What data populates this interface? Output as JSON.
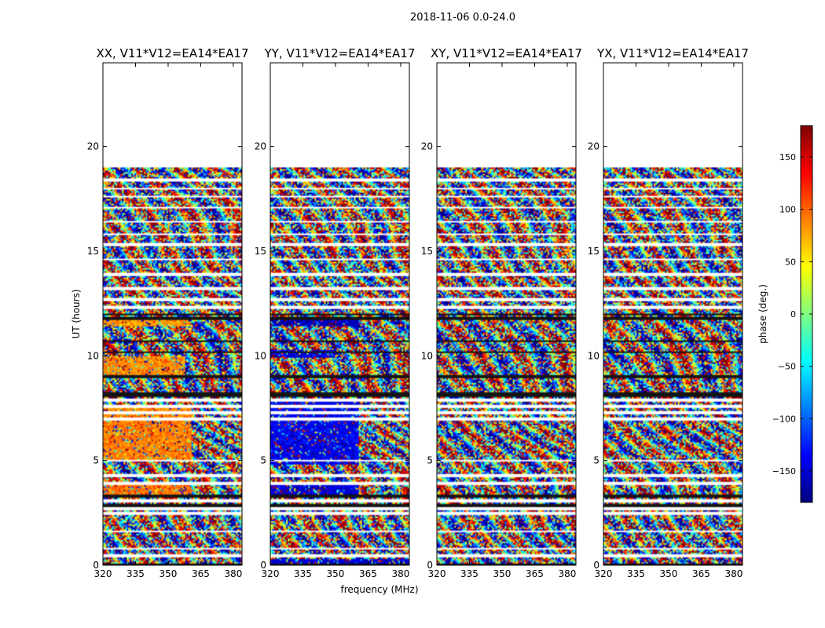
{
  "chart_data": {
    "type": "heatmap",
    "suptitle": "2018-11-06 0.0-24.0",
    "xlabel": "frequency (MHz)",
    "ylabel": "UT (hours)",
    "xlim": [
      320,
      384
    ],
    "ylim": [
      0,
      24
    ],
    "x_ticks": [
      320,
      335,
      350,
      365,
      380
    ],
    "y_ticks": [
      0,
      5,
      10,
      15,
      20
    ],
    "data_extent_hours": [
      0,
      19
    ],
    "colorbar": {
      "label": "phase (deg.)",
      "range": [
        -180,
        180
      ],
      "ticks": [
        -150,
        -100,
        -50,
        0,
        50,
        100,
        150
      ],
      "ticklabels": [
        "−150",
        "−100",
        "−50",
        "0",
        "50",
        "100",
        "150"
      ],
      "colors": [
        "#00007f",
        "#0000ff",
        "#007fff",
        "#00ffff",
        "#7fff7f",
        "#ffff00",
        "#ff7f00",
        "#ff0000",
        "#7f0000"
      ]
    },
    "panels": [
      {
        "title": "XX, V11*V12=EA14*EA17",
        "pol": "XX",
        "bias_regions": [
          {
            "ut": [
              5.0,
              7.5
            ],
            "freq": [
              320,
              361
            ],
            "phase": 90
          },
          {
            "ut": [
              9.0,
              10.0
            ],
            "freq": [
              320,
              358
            ],
            "phase": 85
          },
          {
            "ut": [
              11.4,
              11.7
            ],
            "freq": [
              320,
              360
            ],
            "phase": 80
          },
          {
            "ut": [
              3.4,
              3.8
            ],
            "freq": [
              320,
              361
            ],
            "phase": 95
          }
        ]
      },
      {
        "title": "YY, V11*V12=EA14*EA17",
        "pol": "YY",
        "bias_regions": [
          {
            "ut": [
              4.8,
              7.9
            ],
            "freq": [
              320,
              361
            ],
            "phase": -140
          },
          {
            "ut": [
              9.9,
              10.3
            ],
            "freq": [
              320,
              350
            ],
            "phase": -145
          },
          {
            "ut": [
              11.4,
              11.7
            ],
            "freq": [
              320,
              361
            ],
            "phase": -160
          },
          {
            "ut": [
              3.4,
              3.8
            ],
            "freq": [
              320,
              361
            ],
            "phase": -150
          },
          {
            "ut": [
              0,
              0.3
            ],
            "freq": [
              320,
              384
            ],
            "phase": -150
          }
        ]
      },
      {
        "title": "XY, V11*V12=EA14*EA17",
        "pol": "XY",
        "bias_regions": []
      },
      {
        "title": "YX, V11*V12=EA14*EA17",
        "pol": "YX",
        "bias_regions": []
      }
    ],
    "grid": false
  }
}
